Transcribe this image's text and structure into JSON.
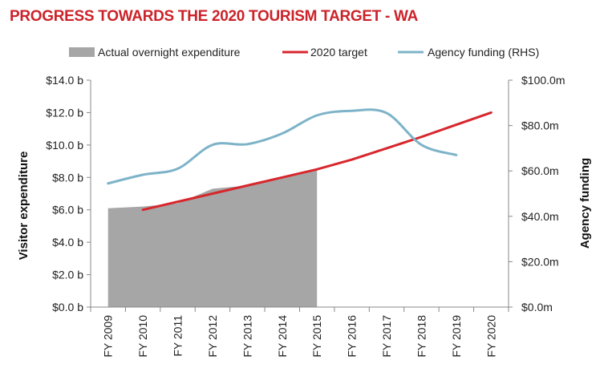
{
  "chart_data": {
    "type": "area",
    "title": "PROGRESS TOWARDS THE 2020 TOURISM TARGET - WA",
    "categories": [
      "FY 2009",
      "FY 2010",
      "FY 2011",
      "FY 2012",
      "FY 2013",
      "FY 2014",
      "FY 2015",
      "FY 2016",
      "FY 2017",
      "FY 2018",
      "FY 2019",
      "FY 2020"
    ],
    "ylabel": "Visitor expenditure",
    "y2label": "Agency funding",
    "ylim": [
      0,
      14
    ],
    "y2lim": [
      0,
      100
    ],
    "yticks": [
      "$0.0 b",
      "$2.0 b",
      "$4.0 b",
      "$6.0 b",
      "$8.0 b",
      "$10.0 b",
      "$12.0 b",
      "$14.0 b"
    ],
    "y2ticks": [
      "$0.0m",
      "$20.0m",
      "$40.0m",
      "$60.0m",
      "$80.0m",
      "$100.0m"
    ],
    "legend_position": "top",
    "series": [
      {
        "name": "Actual overnight expenditure",
        "kind": "area",
        "axis": "left",
        "color": "#a6a6a6",
        "values": [
          6.1,
          6.2,
          6.4,
          7.3,
          7.5,
          8.0,
          8.5,
          null,
          null,
          null,
          null,
          null
        ]
      },
      {
        "name": "2020 target",
        "kind": "line",
        "axis": "left",
        "color": "#d7262c",
        "values": [
          null,
          6.0,
          6.5,
          7.0,
          7.5,
          8.0,
          8.5,
          9.1,
          9.8,
          10.5,
          11.25,
          12.0
        ]
      },
      {
        "name": "Agency funding (RHS)",
        "kind": "line",
        "axis": "right",
        "color": "#7db3c8",
        "values": [
          54.5,
          58.3,
          61.0,
          71.5,
          71.8,
          76.5,
          84.5,
          86.5,
          85.5,
          71.5,
          67.0,
          null
        ]
      }
    ]
  }
}
